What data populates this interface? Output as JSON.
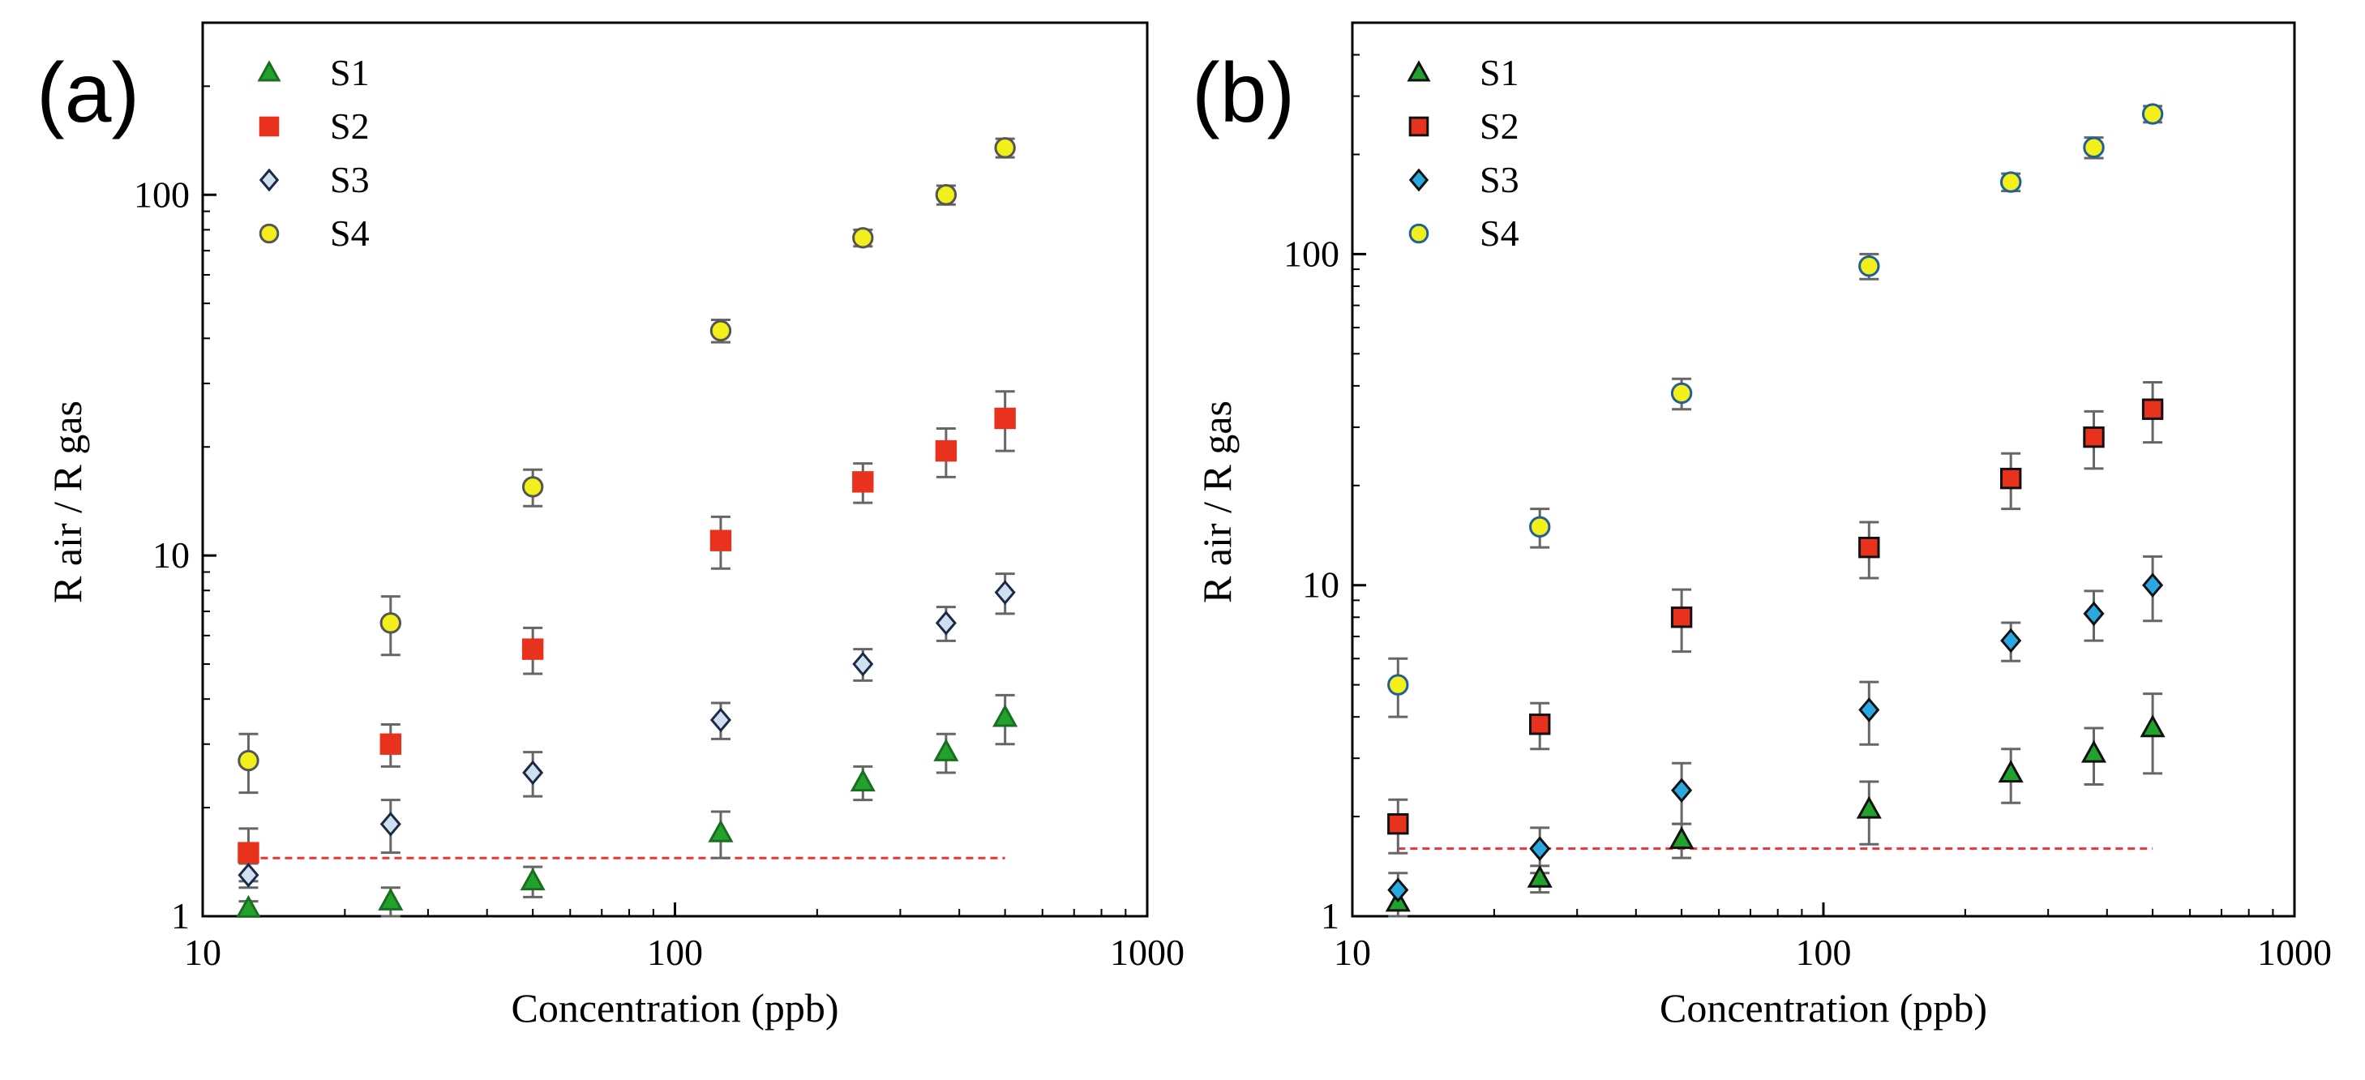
{
  "figure": {
    "panels": [
      "(a)",
      "(b)"
    ]
  },
  "chart_data": [
    {
      "type": "scatter",
      "panel_label": "(a)",
      "title": "",
      "xlabel": "Concentration (ppb)",
      "ylabel": "R air / R gas",
      "xscale": "log",
      "yscale": "log",
      "xlim": [
        10,
        1000
      ],
      "ylim": [
        1,
        300
      ],
      "xticks": [
        10,
        100,
        1000
      ],
      "xtick_labels": [
        "10",
        "100",
        "1000"
      ],
      "yticks": [
        1,
        10,
        100
      ],
      "ytick_labels": [
        "1",
        "10",
        "100"
      ],
      "legend_position": "top-left",
      "threshold_line": {
        "y": 1.45,
        "x_range": [
          12.5,
          500
        ],
        "color": "#ee3333"
      },
      "x": [
        12.5,
        25,
        50,
        125,
        250,
        375,
        500
      ],
      "series": [
        {
          "name": "S1",
          "marker": "triangle",
          "fill": "#22a12c",
          "stroke": "#1a6e22",
          "values": [
            1.05,
            1.1,
            1.25,
            1.7,
            2.35,
            2.85,
            3.55
          ],
          "errors": [
            0.05,
            0.1,
            0.12,
            0.25,
            0.25,
            0.35,
            0.55
          ]
        },
        {
          "name": "S2",
          "marker": "square",
          "fill": "#e8321e",
          "stroke": "#e8321e",
          "values": [
            1.5,
            3.0,
            5.5,
            11.0,
            16.0,
            19.5,
            24.0
          ],
          "errors": [
            0.25,
            0.4,
            0.8,
            1.8,
            2.0,
            3.0,
            4.5
          ]
        },
        {
          "name": "S3",
          "marker": "diamond",
          "fill": "#cfe0f2",
          "stroke": "#1c2a44",
          "values": [
            1.3,
            1.8,
            2.5,
            3.5,
            5.0,
            6.5,
            7.9
          ],
          "errors": [
            0.1,
            0.3,
            0.35,
            0.4,
            0.5,
            0.7,
            1.0
          ]
        },
        {
          "name": "S4",
          "marker": "circle",
          "fill": "#f3ef1a",
          "stroke": "#555555",
          "values": [
            2.7,
            6.5,
            15.5,
            42.0,
            76.0,
            100.0,
            135.0
          ],
          "errors": [
            0.5,
            1.2,
            1.8,
            3.0,
            4.0,
            6.0,
            8.0
          ]
        }
      ]
    },
    {
      "type": "scatter",
      "panel_label": "(b)",
      "title": "",
      "xlabel": "Concentration (ppb)",
      "ylabel": "R air / R gas",
      "xscale": "log",
      "yscale": "log",
      "xlim": [
        10,
        1000
      ],
      "ylim": [
        1,
        500
      ],
      "xticks": [
        10,
        100,
        1000
      ],
      "xtick_labels": [
        "10",
        "100",
        "1000"
      ],
      "yticks": [
        1,
        10,
        100
      ],
      "ytick_labels": [
        "1",
        "10",
        "100"
      ],
      "legend_position": "top-left",
      "threshold_line": {
        "y": 1.6,
        "x_range": [
          12.5,
          500
        ],
        "color": "#ee3333"
      },
      "x": [
        12.5,
        25,
        50,
        125,
        250,
        375,
        500
      ],
      "series": [
        {
          "name": "S1",
          "marker": "triangle",
          "fill": "#22a12c",
          "stroke": "#111111",
          "values": [
            1.1,
            1.3,
            1.7,
            2.1,
            2.7,
            3.1,
            3.7
          ],
          "errors": [
            0.1,
            0.12,
            0.2,
            0.45,
            0.5,
            0.6,
            1.0
          ]
        },
        {
          "name": "S2",
          "marker": "square",
          "fill": "#e8321e",
          "stroke": "#111111",
          "values": [
            1.9,
            3.8,
            8.0,
            13.0,
            21.0,
            28.0,
            34.0
          ],
          "errors": [
            0.35,
            0.6,
            1.7,
            2.5,
            4.0,
            5.5,
            7.0
          ]
        },
        {
          "name": "S3",
          "marker": "diamond",
          "fill": "#2aa8e0",
          "stroke": "#111111",
          "values": [
            1.2,
            1.6,
            2.4,
            4.2,
            6.8,
            8.2,
            10.0
          ],
          "errors": [
            0.15,
            0.25,
            0.5,
            0.9,
            0.9,
            1.4,
            2.2
          ]
        },
        {
          "name": "S4",
          "marker": "circle",
          "fill": "#f3ef1a",
          "stroke": "#1f5f9a",
          "values": [
            5.0,
            15.0,
            38.0,
            92.0,
            165.0,
            210.0,
            265.0
          ],
          "errors": [
            1.0,
            2.0,
            4.0,
            8.0,
            10.0,
            15.0,
            15.0
          ]
        }
      ]
    }
  ]
}
